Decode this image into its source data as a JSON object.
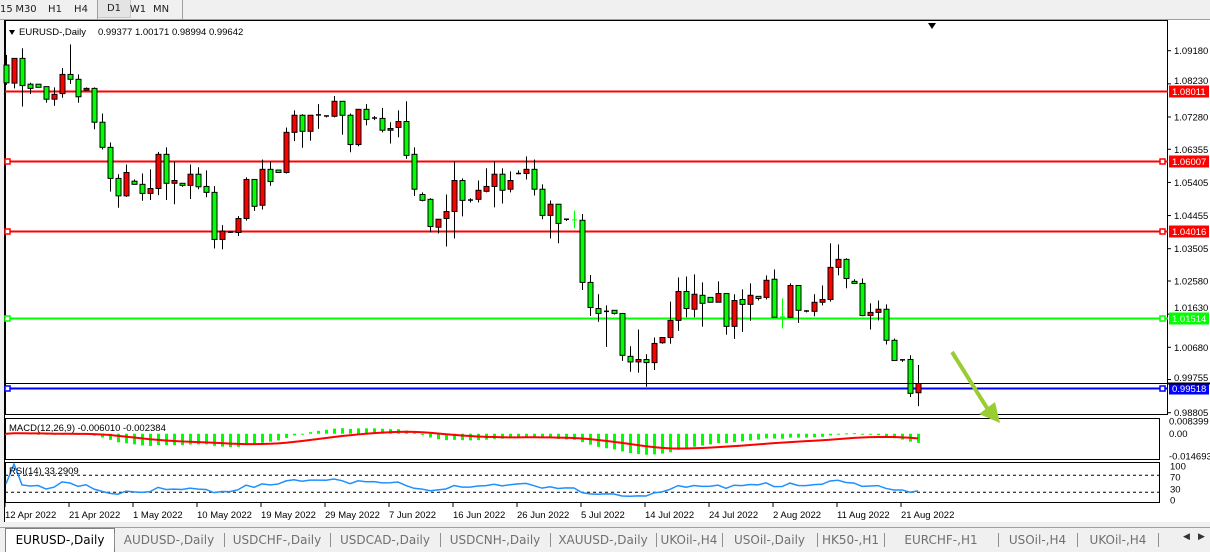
{
  "toolbar": {
    "timeframes": [
      {
        "label": "15",
        "active": false
      },
      {
        "label": "M30",
        "active": false
      },
      {
        "label": "H1",
        "active": false
      },
      {
        "label": "H4",
        "active": false
      },
      {
        "label": "D1",
        "active": true
      },
      {
        "label": "W1",
        "active": false
      },
      {
        "label": "MN",
        "active": false
      }
    ]
  },
  "chart": {
    "header": "EURUSD-,Daily",
    "ohlc": "0.99377 1.00171 0.98994 0.99642",
    "bid_price": 0.99642,
    "colors": {
      "bull": "#ff0000",
      "bear": "#00ff00",
      "doji_equal": "#00ff00",
      "wick": "#000000"
    },
    "price_ticks": [
      "1.09180",
      "1.08230",
      "1.07280",
      "1.06355",
      "1.05405",
      "1.04455",
      "1.03505",
      "1.02580",
      "1.01630",
      "1.00680",
      "0.99755",
      "0.98805"
    ],
    "hlines": [
      {
        "price": 1.08011,
        "label": "1.08011",
        "color": "#ff0000",
        "markers": false
      },
      {
        "price": 1.06007,
        "label": "1.06007",
        "color": "#ff0000",
        "markers": true
      },
      {
        "price": 1.04016,
        "label": "1.04016",
        "color": "#ff0000",
        "markers": true
      },
      {
        "price": 1.01514,
        "label": "1.01514",
        "color": "#00ff00",
        "markers": true
      },
      {
        "price": 0.99518,
        "label": "0.99518",
        "color": "#0000ff",
        "markers": true
      }
    ],
    "arrow_color": "#9acd32",
    "date_labels": [
      "12 Apr 2022",
      "21 Apr 2022",
      "1 May 2022",
      "10 May 2022",
      "19 May 2022",
      "29 May 2022",
      "7 Jun 2022",
      "16 Jun 2022",
      "26 Jun 2022",
      "5 Jul 2022",
      "14 Jul 2022",
      "24 Jul 2022",
      "2 Aug 2022",
      "11 Aug 2022",
      "21 Aug 2022"
    ],
    "candles_ohlc": [
      [
        1.0877,
        1.0906,
        1.082,
        1.0826
      ],
      [
        1.0825,
        1.0896,
        1.081,
        1.0896
      ],
      [
        1.0896,
        1.0925,
        1.0758,
        1.0818
      ],
      [
        1.0822,
        1.0826,
        1.0794,
        1.081
      ],
      [
        1.0822,
        1.0822,
        1.0813,
        1.0813
      ],
      [
        1.0815,
        1.0815,
        1.0769,
        1.0779
      ],
      [
        1.0779,
        1.0813,
        1.076,
        1.0793
      ],
      [
        1.0795,
        1.0868,
        1.0783,
        1.085
      ],
      [
        1.085,
        1.0936,
        1.0823,
        1.0836
      ],
      [
        1.0836,
        1.085,
        1.0769,
        1.0786
      ],
      [
        1.0805,
        1.0813,
        1.0805,
        1.081
      ],
      [
        1.081,
        1.0813,
        1.0693,
        1.0713
      ],
      [
        1.0713,
        1.0738,
        1.0635,
        1.0641
      ],
      [
        1.0641,
        1.0655,
        1.0514,
        1.0552
      ],
      [
        1.0552,
        1.0564,
        1.0468,
        1.0502
      ],
      [
        1.0502,
        1.0592,
        1.0499,
        1.0569
      ],
      [
        1.0544,
        1.0549,
        1.0535,
        1.0535
      ],
      [
        1.0535,
        1.0566,
        1.0488,
        1.0509
      ],
      [
        1.0509,
        1.0578,
        1.049,
        1.0523
      ],
      [
        1.0523,
        1.0628,
        1.0504,
        1.0621
      ],
      [
        1.0621,
        1.0641,
        1.049,
        1.0538
      ],
      [
        1.0538,
        1.06,
        1.0478,
        1.0546
      ],
      [
        1.0538,
        1.0538,
        1.0528,
        1.0532
      ],
      [
        1.0532,
        1.0592,
        1.0493,
        1.0564
      ],
      [
        1.0564,
        1.0584,
        1.0521,
        1.0528
      ],
      [
        1.0529,
        1.0575,
        1.0498,
        1.0512
      ],
      [
        1.0512,
        1.053,
        1.0351,
        1.0377
      ],
      [
        1.0377,
        1.0418,
        1.0349,
        1.0401
      ],
      [
        1.0397,
        1.0398,
        1.0396,
        1.0398
      ],
      [
        1.0397,
        1.0444,
        1.0387,
        1.0437
      ],
      [
        1.0437,
        1.0555,
        1.0431,
        1.0549
      ],
      [
        1.0549,
        1.0549,
        1.0459,
        1.0472
      ],
      [
        1.0475,
        1.0606,
        1.0463,
        1.0578
      ],
      [
        1.0578,
        1.06,
        1.0531,
        1.0543
      ],
      [
        1.0576,
        1.0576,
        1.0569,
        1.0569
      ],
      [
        1.0569,
        1.0698,
        1.0566,
        1.0684
      ],
      [
        1.0684,
        1.0747,
        1.0659,
        1.0733
      ],
      [
        1.0733,
        1.0736,
        1.064,
        1.0687
      ],
      [
        1.0687,
        1.0733,
        1.066,
        1.0733
      ],
      [
        1.0733,
        1.0765,
        1.0694,
        1.0734
      ],
      [
        1.0731,
        1.0731,
        1.0727,
        1.073
      ],
      [
        1.073,
        1.0788,
        1.0727,
        1.0773
      ],
      [
        1.0773,
        1.0773,
        1.0677,
        1.0733
      ],
      [
        1.0733,
        1.0738,
        1.0627,
        1.0649
      ],
      [
        1.0649,
        1.075,
        1.0644,
        1.075
      ],
      [
        1.075,
        1.0765,
        1.0704,
        1.0721
      ],
      [
        1.0725,
        1.0731,
        1.0719,
        1.0724
      ],
      [
        1.0724,
        1.0754,
        1.0684,
        1.069
      ],
      [
        1.069,
        1.0713,
        1.0652,
        1.0695
      ],
      [
        1.0698,
        1.0747,
        1.067,
        1.0715
      ],
      [
        1.0715,
        1.0773,
        1.0608,
        1.0618
      ],
      [
        1.0621,
        1.0641,
        1.0502,
        1.0521
      ],
      [
        1.0506,
        1.0512,
        1.0486,
        1.0489
      ],
      [
        1.0492,
        1.0495,
        1.0397,
        1.0414
      ],
      [
        1.0412,
        1.0435,
        1.0394,
        1.0435
      ],
      [
        1.0437,
        1.0506,
        1.0357,
        1.0457
      ],
      [
        1.0457,
        1.0601,
        1.038,
        1.0546
      ],
      [
        1.0546,
        1.0552,
        1.0443,
        1.0489
      ],
      [
        1.0489,
        1.0495,
        1.0483,
        1.049
      ],
      [
        1.0492,
        1.0546,
        1.0483,
        1.0518
      ],
      [
        1.0515,
        1.0581,
        1.0512,
        1.0529
      ],
      [
        1.0529,
        1.0601,
        1.0469,
        1.0564
      ],
      [
        1.0564,
        1.0581,
        1.048,
        1.0518
      ],
      [
        1.0521,
        1.0572,
        1.0512,
        1.0546
      ],
      [
        1.0565,
        1.0575,
        1.0564,
        1.0566
      ],
      [
        1.0566,
        1.0615,
        1.0549,
        1.0578
      ],
      [
        1.0578,
        1.0606,
        1.0503,
        1.0521
      ],
      [
        1.0521,
        1.0535,
        1.0435,
        1.0446
      ],
      [
        1.0446,
        1.0489,
        1.038,
        1.0478
      ],
      [
        1.0478,
        1.0478,
        1.0366,
        1.0423
      ],
      [
        1.0435,
        1.0435,
        1.043,
        1.0434
      ],
      [
        1.0433,
        1.046,
        1.0409,
        1.0433
      ],
      [
        1.0432,
        1.045,
        1.0232,
        1.0254
      ],
      [
        1.0254,
        1.0275,
        1.0158,
        1.0182
      ],
      [
        1.0179,
        1.022,
        1.0141,
        1.0165
      ],
      [
        1.017,
        1.0188,
        1.0069,
        1.0171
      ],
      [
        1.0174,
        1.0174,
        1.0162,
        1.0165
      ],
      [
        1.0165,
        1.0165,
        1.0029,
        1.0045
      ],
      [
        1.0042,
        1.0071,
        0.9998,
        1.0026
      ],
      [
        1.0026,
        1.0119,
        0.9995,
        1.0033
      ],
      [
        1.0033,
        1.0048,
        0.9955,
        1.0024
      ],
      [
        1.0024,
        1.0096,
        1.0003,
        1.0079
      ],
      [
        1.0081,
        1.0096,
        1.0078,
        1.0096
      ],
      [
        1.0096,
        1.0199,
        1.0078,
        1.0145
      ],
      [
        1.0145,
        1.0268,
        1.0115,
        1.0228
      ],
      [
        1.0228,
        1.0271,
        1.0154,
        1.0179
      ],
      [
        1.0177,
        1.0277,
        1.0154,
        1.022
      ],
      [
        1.0217,
        1.0254,
        1.0127,
        1.0194
      ],
      [
        1.0211,
        1.0211,
        1.0197,
        1.0197
      ],
      [
        1.0197,
        1.0257,
        1.0197,
        1.0222
      ],
      [
        1.0222,
        1.0222,
        1.0104,
        1.0128
      ],
      [
        1.0128,
        1.022,
        1.0092,
        1.0202
      ],
      [
        1.0205,
        1.0234,
        1.0112,
        1.0191
      ],
      [
        1.0191,
        1.0251,
        1.0144,
        1.0217
      ],
      [
        1.0214,
        1.0214,
        1.0202,
        1.0208
      ],
      [
        1.0211,
        1.0274,
        1.0205,
        1.026
      ],
      [
        1.0263,
        1.0291,
        1.0154,
        1.0154
      ],
      [
        1.0155,
        1.0208,
        1.0122,
        1.0155
      ],
      [
        1.0154,
        1.0251,
        1.0154,
        1.0245
      ],
      [
        1.0245,
        1.0245,
        1.0138,
        1.0174
      ],
      [
        1.0171,
        1.0174,
        1.0168,
        1.0172
      ],
      [
        1.0171,
        1.022,
        1.0157,
        1.0197
      ],
      [
        1.0197,
        1.0245,
        1.0188,
        1.0205
      ],
      [
        1.0205,
        1.0366,
        1.0199,
        1.0297
      ],
      [
        1.0297,
        1.0363,
        1.0274,
        1.032
      ],
      [
        1.032,
        1.0323,
        1.0237,
        1.0265
      ],
      [
        1.0257,
        1.0263,
        1.0251,
        1.0251
      ],
      [
        1.0251,
        1.0265,
        1.0157,
        1.0159
      ],
      [
        1.0159,
        1.0194,
        1.0119,
        1.0168
      ],
      [
        1.0168,
        1.0202,
        1.0145,
        1.0177
      ],
      [
        1.0177,
        1.0191,
        1.0076,
        1.0088
      ],
      [
        1.0088,
        1.0093,
        1.003,
        1.003
      ],
      [
        1.0032,
        1.0032,
        1.0026,
        1.0031
      ],
      [
        1.0033,
        1.0045,
        0.9925,
        0.9936
      ],
      [
        0.99377,
        1.00171,
        0.98994,
        0.99642
      ]
    ]
  },
  "macd": {
    "label": "MACD(12,26,9) -0.006010 -0.002384",
    "scale_labels": [
      "0.008399",
      "0.00",
      "-0.014693"
    ],
    "scale_max": 0.008399,
    "scale_min": -0.014693,
    "hist_color": "#00ff00",
    "signal_color": "#ff0000"
  },
  "rsi": {
    "label": "RSI(14) 33.2909",
    "scale_labels": [
      "100",
      "70",
      "30",
      "0"
    ],
    "line_color": "#1e90ff"
  },
  "tabs": [
    {
      "label": "EURUSD-,Daily",
      "active": true
    },
    {
      "label": "AUDUSD-,Daily",
      "active": false
    },
    {
      "label": "USDCHF-,Daily",
      "active": false
    },
    {
      "label": "USDCAD-,Daily",
      "active": false
    },
    {
      "label": "USDCNH-,Daily",
      "active": false
    },
    {
      "label": "XAUUSD-,Daily",
      "active": false
    },
    {
      "label": "UKOil-,H4",
      "active": false
    },
    {
      "label": "USOil-,Daily",
      "active": false
    },
    {
      "label": "HK50-,H1",
      "active": false
    },
    {
      "label": "EURCHF-,H1",
      "active": false
    },
    {
      "label": "USOil-,H4",
      "active": false
    },
    {
      "label": "UKOil-,H4",
      "active": false
    }
  ]
}
